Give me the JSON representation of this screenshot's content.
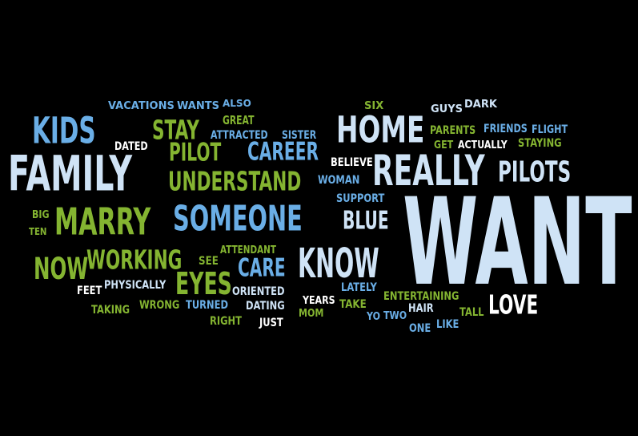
{
  "colors": {
    "background": "#000000",
    "pale_blue": "#cfe3f6",
    "sky_blue": "#6aaee6",
    "green": "#84b431",
    "white": "#ffffff"
  },
  "words": [
    {
      "text": "VACATIONS",
      "color": "sky_blue"
    },
    {
      "text": "WANTS",
      "color": "sky_blue"
    },
    {
      "text": "ALSO",
      "color": "sky_blue"
    },
    {
      "text": "SIX",
      "color": "green"
    },
    {
      "text": "GUYS",
      "color": "pale_blue"
    },
    {
      "text": "DARK",
      "color": "pale_blue"
    },
    {
      "text": "KIDS",
      "color": "sky_blue"
    },
    {
      "text": "STAY",
      "color": "green"
    },
    {
      "text": "GREAT",
      "color": "green"
    },
    {
      "text": "ATTRACTED",
      "color": "sky_blue"
    },
    {
      "text": "SISTER",
      "color": "sky_blue"
    },
    {
      "text": "HOME",
      "color": "pale_blue"
    },
    {
      "text": "PARENTS",
      "color": "green"
    },
    {
      "text": "FRIENDS",
      "color": "sky_blue"
    },
    {
      "text": "FLIGHT",
      "color": "sky_blue"
    },
    {
      "text": "DATED",
      "color": "white"
    },
    {
      "text": "PILOT",
      "color": "green"
    },
    {
      "text": "CAREER",
      "color": "sky_blue"
    },
    {
      "text": "GET",
      "color": "green"
    },
    {
      "text": "ACTUALLY",
      "color": "white"
    },
    {
      "text": "STAYING",
      "color": "green"
    },
    {
      "text": "FAMILY",
      "color": "pale_blue"
    },
    {
      "text": "BELIEVE",
      "color": "white"
    },
    {
      "text": "REALLY",
      "color": "pale_blue"
    },
    {
      "text": "PILOTS",
      "color": "pale_blue"
    },
    {
      "text": "UNDERSTAND",
      "color": "green"
    },
    {
      "text": "WOMAN",
      "color": "sky_blue"
    },
    {
      "text": "SUPPORT",
      "color": "sky_blue"
    },
    {
      "text": "BIG",
      "color": "green"
    },
    {
      "text": "MARRY",
      "color": "green"
    },
    {
      "text": "SOMEONE",
      "color": "sky_blue"
    },
    {
      "text": "BLUE",
      "color": "pale_blue"
    },
    {
      "text": "WANT",
      "color": "pale_blue"
    },
    {
      "text": "TEN",
      "color": "green"
    },
    {
      "text": "ATTENDANT",
      "color": "green"
    },
    {
      "text": "NOW",
      "color": "green"
    },
    {
      "text": "WORKING",
      "color": "green"
    },
    {
      "text": "SEE",
      "color": "green"
    },
    {
      "text": "CARE",
      "color": "sky_blue"
    },
    {
      "text": "KNOW",
      "color": "pale_blue"
    },
    {
      "text": "EYES",
      "color": "green"
    },
    {
      "text": "ORIENTED",
      "color": "pale_blue"
    },
    {
      "text": "LATELY",
      "color": "sky_blue"
    },
    {
      "text": "ENTERTAINING",
      "color": "green"
    },
    {
      "text": "FEET",
      "color": "white"
    },
    {
      "text": "PHYSICALLY",
      "color": "pale_blue"
    },
    {
      "text": "YEARS",
      "color": "white"
    },
    {
      "text": "TAKE",
      "color": "green"
    },
    {
      "text": "LOVE",
      "color": "white"
    },
    {
      "text": "TAKING",
      "color": "green"
    },
    {
      "text": "WRONG",
      "color": "green"
    },
    {
      "text": "TURNED",
      "color": "sky_blue"
    },
    {
      "text": "DATING",
      "color": "pale_blue"
    },
    {
      "text": "HAIR",
      "color": "pale_blue"
    },
    {
      "text": "TALL",
      "color": "green"
    },
    {
      "text": "MOM",
      "color": "green"
    },
    {
      "text": "YO",
      "color": "sky_blue"
    },
    {
      "text": "TWO",
      "color": "sky_blue"
    },
    {
      "text": "RIGHT",
      "color": "green"
    },
    {
      "text": "JUST",
      "color": "white"
    },
    {
      "text": "ONE",
      "color": "sky_blue"
    },
    {
      "text": "LIKE",
      "color": "sky_blue"
    }
  ]
}
